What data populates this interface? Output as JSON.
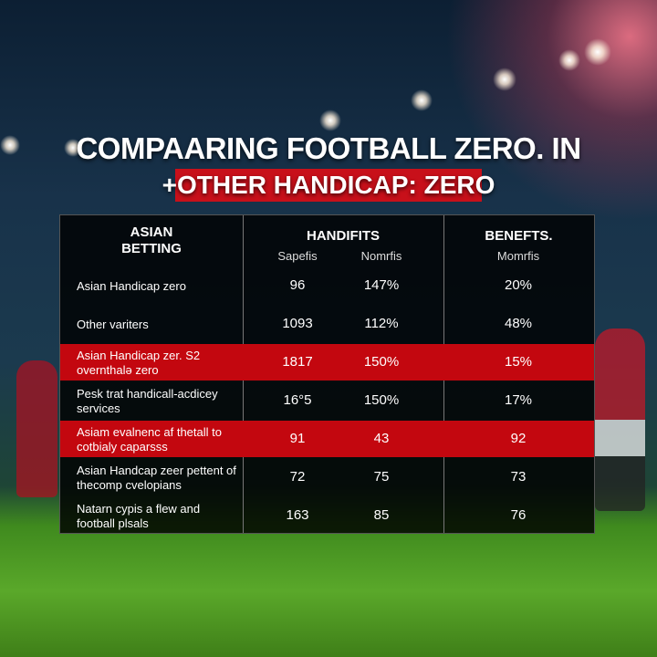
{
  "title": {
    "line1": "COMPAARING FOOTBALL ZERO. IN",
    "line2": "+OTHER HANDICAP: ZERO"
  },
  "table": {
    "headers": [
      "ASIAN BETTING",
      "HANDIFITS",
      "BENEFTS."
    ],
    "subheaders": [
      "Sapefis",
      "Nomrfis",
      "Momrfis"
    ],
    "rows": [
      [
        "Asian Handicap zero",
        "96",
        "147%",
        "20%"
      ],
      [
        "Other variters",
        "1093",
        "112%",
        "48%"
      ],
      [
        "Asian Handicap zer. S2 overnthalə zero",
        "1817",
        "150%",
        "15%"
      ],
      [
        "Pesk trat handicall-acdicey services",
        "16°5",
        "150%",
        "17%"
      ],
      [
        "Asiam evalnenc af thetall to cotbialy caparsss",
        "91",
        "43",
        "92"
      ],
      [
        "Asian Handcap zeer pettent of thecomp cvelopians",
        "72",
        "75",
        "73"
      ],
      [
        "Natarn cypis a flew and football plsals",
        "163",
        "85",
        "76"
      ]
    ],
    "highlighted_rows": [
      2,
      4
    ]
  }
}
